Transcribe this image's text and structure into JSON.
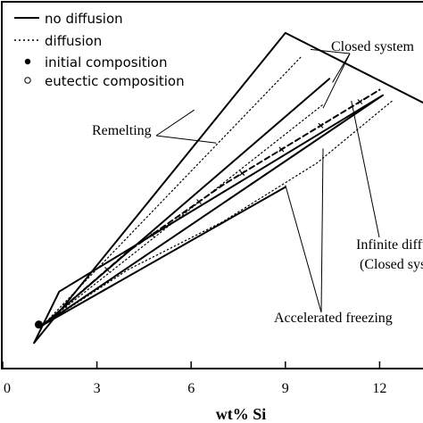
{
  "chart_data": {
    "type": "line",
    "xlabel": "wt% Si",
    "x_ticks": [
      0,
      3,
      6,
      9,
      12
    ],
    "xlim": [
      0,
      13.3
    ],
    "ylim": [
      0,
      1
    ],
    "y_ticks_visible": false,
    "legend_placement": "top-left",
    "legend": [
      {
        "label": "no diffusion",
        "style": "solid"
      },
      {
        "label": "diffusion",
        "style": "dotted"
      },
      {
        "label": "initial composition",
        "style": "filled-circle"
      },
      {
        "label": "eutectic composition",
        "style": "open-circle"
      }
    ],
    "series": [
      {
        "style": "solid",
        "width": 2,
        "points": [
          [
            1.0,
            0.07
          ],
          [
            9.0,
            0.915
          ],
          [
            13.5,
            0.72
          ]
        ]
      },
      {
        "style": "solid",
        "width": 2,
        "points": [
          [
            1.3,
            0.12
          ],
          [
            10.4,
            0.79
          ]
        ]
      },
      {
        "style": "solid",
        "width": 2,
        "points": [
          [
            1.0,
            0.07
          ],
          [
            1.8,
            0.21
          ],
          [
            12.1,
            0.745
          ]
        ]
      },
      {
        "style": "solid",
        "width": 2,
        "points": [
          [
            1.3,
            0.12
          ],
          [
            12.1,
            0.745
          ]
        ]
      },
      {
        "style": "solid",
        "width": 2,
        "points": [
          [
            1.3,
            0.12
          ],
          [
            9.0,
            0.495
          ]
        ]
      },
      {
        "style": "dotted",
        "width": 1.2,
        "points": [
          [
            1.3,
            0.12
          ],
          [
            9.5,
            0.85
          ]
        ]
      },
      {
        "style": "dotted",
        "width": 1.2,
        "points": [
          [
            1.3,
            0.12
          ],
          [
            10.2,
            0.72
          ]
        ]
      },
      {
        "style": "dotted",
        "width": 1.2,
        "points": [
          [
            1.3,
            0.12
          ],
          [
            4,
            0.27
          ],
          [
            7,
            0.4
          ],
          [
            10,
            0.56
          ],
          [
            12.4,
            0.73
          ]
        ]
      },
      {
        "style": "dashed-marker",
        "width": 2,
        "points": [
          [
            1.3,
            0.12
          ],
          [
            4,
            0.32
          ],
          [
            7,
            0.5
          ],
          [
            9.5,
            0.63
          ],
          [
            12,
            0.76
          ]
        ]
      }
    ],
    "points": [
      {
        "kind": "initial composition",
        "style": "filled-circle",
        "x": 1.15,
        "y": 0.12
      }
    ],
    "annotations": [
      {
        "text": "Closed system",
        "target_points": [
          [
            9.8,
            0.87
          ],
          [
            10.5,
            0.78
          ],
          [
            10.2,
            0.71
          ]
        ]
      },
      {
        "text": "Remelting",
        "target_points": [
          [
            6.1,
            0.705
          ],
          [
            6.8,
            0.615
          ]
        ]
      },
      {
        "text": "Infinite diffusion",
        "line2": "(Closed system)",
        "target_points": [
          [
            11.1,
            0.73
          ]
        ]
      },
      {
        "text": "Accelerated freezing",
        "target_points": [
          [
            9.0,
            0.5
          ],
          [
            10.2,
            0.6
          ]
        ]
      }
    ]
  }
}
